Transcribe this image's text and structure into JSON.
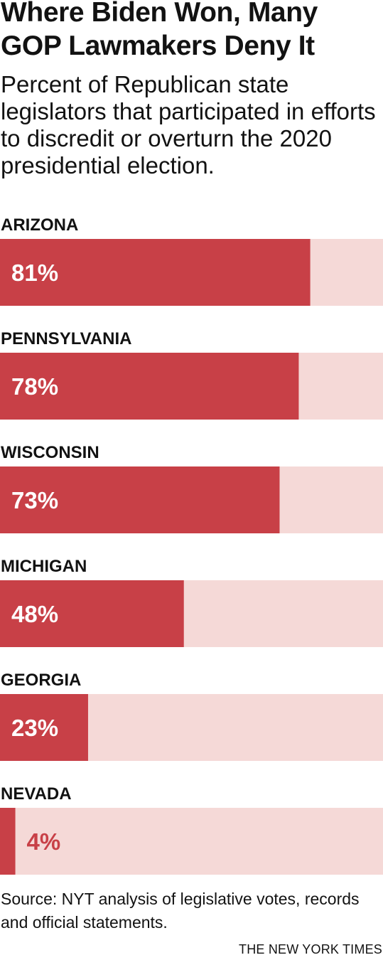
{
  "title": "Where Biden Won, Many GOP Lawmakers Deny It",
  "subtitle": "Percent of Republican state legislators that participated in efforts to discredit or overturn the 2020 presidential election.",
  "source": "Source: NYT analysis of legislative votes, records and official statements.",
  "credit": "THE NEW YORK TIMES",
  "colors": {
    "bar": "#c84047",
    "track": "#f5d9d7",
    "label_on_bar": "#ffffff",
    "label_off_bar": "#c84047",
    "text": "#121212"
  },
  "chart_data": {
    "type": "bar",
    "orientation": "horizontal",
    "categories": [
      "ARIZONA",
      "PENNSYLVANIA",
      "WISCONSIN",
      "MICHIGAN",
      "GEORGIA",
      "NEVADA"
    ],
    "values": [
      81,
      78,
      73,
      48,
      23,
      4
    ],
    "value_labels": [
      "81%",
      "78%",
      "73%",
      "48%",
      "23%",
      "4%"
    ],
    "xlim": [
      0,
      100
    ],
    "grid": false,
    "legend": false
  }
}
